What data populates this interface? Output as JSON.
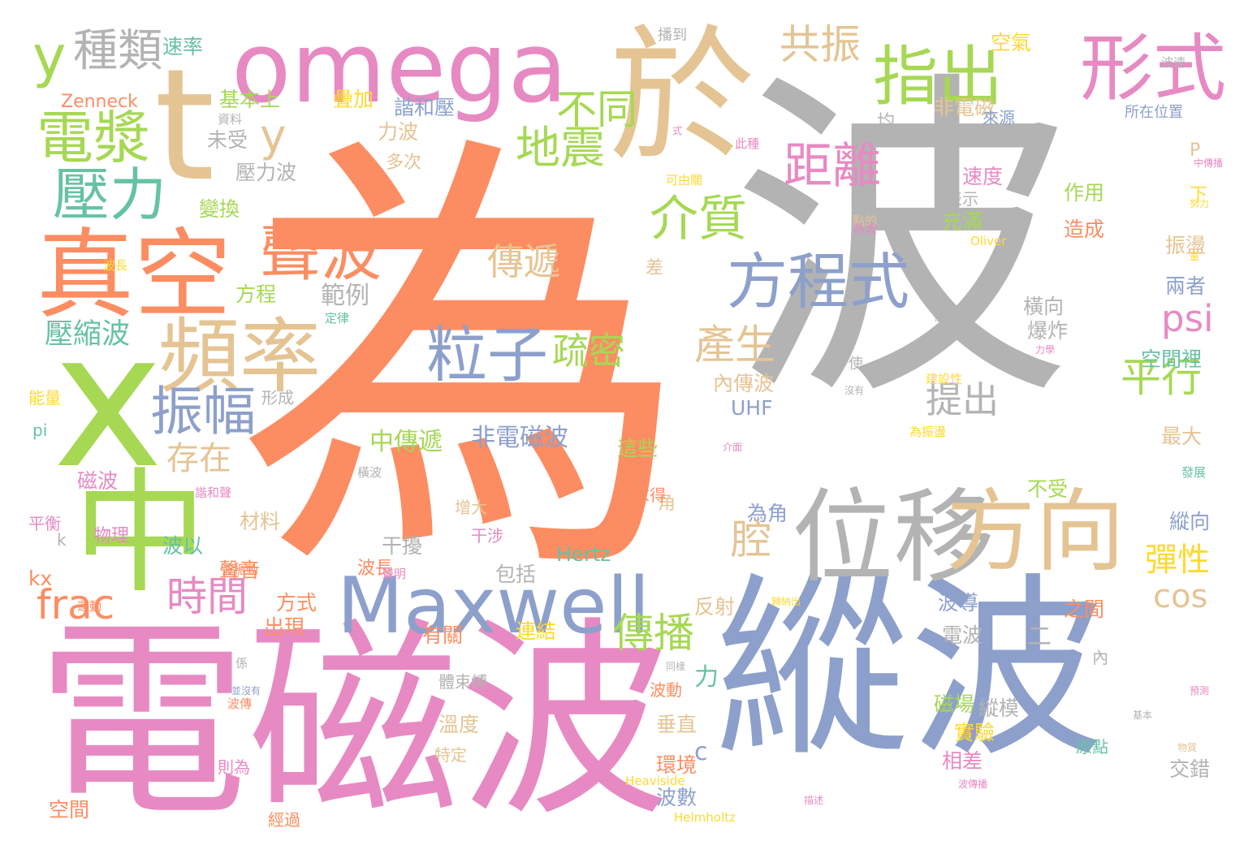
{
  "colors": {
    "orange": "#fc8d62",
    "gray": "#b3b3b3",
    "blue": "#8da0cb",
    "pink": "#e78ac3",
    "green": "#a6d854",
    "tan": "#e5c494",
    "teal": "#66c2a5",
    "yellow": "#ffd92f"
  },
  "words": [
    {
      "text": "為",
      "color": "orange"
    },
    {
      "text": "波",
      "color": "gray"
    },
    {
      "text": "電磁波",
      "color": "pink"
    },
    {
      "text": "縱波",
      "color": "blue"
    },
    {
      "text": "於",
      "color": "tan"
    },
    {
      "text": "omega",
      "color": "pink"
    },
    {
      "text": "t",
      "color": "tan"
    },
    {
      "text": "x",
      "color": "green"
    },
    {
      "text": "中",
      "color": "green"
    },
    {
      "text": "真空",
      "color": "orange"
    },
    {
      "text": "頻率",
      "color": "tan"
    },
    {
      "text": "位移",
      "color": "gray"
    },
    {
      "text": "方向",
      "color": "tan"
    },
    {
      "text": "Maxwell",
      "color": "blue"
    },
    {
      "text": "形式",
      "color": "pink"
    },
    {
      "text": "指出",
      "color": "green"
    },
    {
      "text": "方程式",
      "color": "blue"
    },
    {
      "text": "聲波",
      "color": "orange"
    },
    {
      "text": "粒子",
      "color": "blue"
    },
    {
      "text": "電漿",
      "color": "green"
    },
    {
      "text": "壓力",
      "color": "teal"
    },
    {
      "text": "振幅",
      "color": "blue"
    },
    {
      "text": "距離",
      "color": "pink"
    },
    {
      "text": "介質",
      "color": "green"
    },
    {
      "text": "地震",
      "color": "green"
    },
    {
      "text": "y",
      "color": "green"
    },
    {
      "text": "種類",
      "color": "gray"
    },
    {
      "text": "共振",
      "color": "tan"
    },
    {
      "text": "不同",
      "color": "green"
    },
    {
      "text": "y",
      "color": "tan"
    },
    {
      "text": "傳遞",
      "color": "tan"
    },
    {
      "text": "疏密",
      "color": "green"
    },
    {
      "text": "產生",
      "color": "tan"
    },
    {
      "text": "時間",
      "color": "pink"
    },
    {
      "text": "frac",
      "color": "orange"
    },
    {
      "text": "psi",
      "color": "pink"
    },
    {
      "text": "平行",
      "color": "green"
    },
    {
      "text": "提出",
      "color": "gray"
    },
    {
      "text": "傳播",
      "color": "green"
    },
    {
      "text": "腔",
      "color": "tan"
    },
    {
      "text": "彈性",
      "color": "yellow"
    },
    {
      "text": "cos",
      "color": "tan"
    },
    {
      "text": "存在",
      "color": "tan"
    },
    {
      "text": "壓縮波",
      "color": "teal"
    },
    {
      "text": "非電磁波",
      "color": "blue"
    },
    {
      "text": "中傳遞",
      "color": "green"
    },
    {
      "text": "範例",
      "color": "gray"
    },
    {
      "text": "這些",
      "color": "green"
    },
    {
      "text": "速率",
      "color": "teal"
    },
    {
      "text": "Zenneck",
      "color": "orange"
    },
    {
      "text": "基本上",
      "color": "green"
    },
    {
      "text": "疊加",
      "color": "yellow"
    },
    {
      "text": "諧和壓",
      "color": "blue"
    },
    {
      "text": "力波",
      "color": "tan"
    },
    {
      "text": "未受",
      "color": "gray"
    },
    {
      "text": "多次",
      "color": "tan"
    },
    {
      "text": "壓力波",
      "color": "gray"
    },
    {
      "text": "變換",
      "color": "green"
    },
    {
      "text": "方程",
      "color": "green"
    },
    {
      "text": "內傳波",
      "color": "tan"
    },
    {
      "text": "UHF",
      "color": "blue"
    },
    {
      "text": "最大",
      "color": "tan"
    },
    {
      "text": "非電磁",
      "color": "tan"
    },
    {
      "text": "均",
      "color": "gray"
    },
    {
      "text": "速度",
      "color": "pink"
    },
    {
      "text": "表示",
      "color": "gray"
    },
    {
      "text": "作用",
      "color": "green"
    },
    {
      "text": "充滿",
      "color": "green"
    },
    {
      "text": "造成",
      "color": "orange"
    },
    {
      "text": "振盪",
      "color": "tan"
    },
    {
      "text": "兩者",
      "color": "blue"
    },
    {
      "text": "橫向",
      "color": "gray"
    },
    {
      "text": "爆炸",
      "color": "gray"
    },
    {
      "text": "空間裡",
      "color": "teal"
    },
    {
      "text": "空氣",
      "color": "yellow"
    },
    {
      "text": "來源",
      "color": "blue"
    },
    {
      "text": "磁波",
      "color": "pink"
    },
    {
      "text": "材料",
      "color": "tan"
    },
    {
      "text": "聲音",
      "color": "orange"
    },
    {
      "text": "干擾",
      "color": "gray"
    },
    {
      "text": "包括",
      "color": "gray"
    },
    {
      "text": "Hertz",
      "color": "teal"
    },
    {
      "text": "方式",
      "color": "orange"
    },
    {
      "text": "出現",
      "color": "orange"
    },
    {
      "text": "有關",
      "color": "orange"
    },
    {
      "text": "連結",
      "color": "yellow"
    },
    {
      "text": "反射",
      "color": "tan"
    },
    {
      "text": "溫度",
      "color": "tan"
    },
    {
      "text": "垂直",
      "color": "tan"
    },
    {
      "text": "環境",
      "color": "orange"
    },
    {
      "text": "波數",
      "color": "blue"
    },
    {
      "text": "磁場",
      "color": "green"
    },
    {
      "text": "實驗",
      "color": "yellow"
    },
    {
      "text": "相差",
      "color": "pink"
    },
    {
      "text": "縱模",
      "color": "gray"
    },
    {
      "text": "交錯",
      "color": "gray"
    },
    {
      "text": "空間",
      "color": "orange"
    },
    {
      "text": "電波",
      "color": "gray"
    },
    {
      "text": "波導",
      "color": "blue"
    },
    {
      "text": "之間",
      "color": "orange"
    },
    {
      "text": "不受",
      "color": "green"
    },
    {
      "text": "縱向",
      "color": "blue"
    },
    {
      "text": "為角",
      "color": "blue"
    },
    {
      "text": "增大",
      "color": "tan"
    },
    {
      "text": "波長",
      "color": "orange"
    },
    {
      "text": "波以",
      "color": "teal"
    },
    {
      "text": "物理",
      "color": "pink"
    },
    {
      "text": "平衡",
      "color": "pink"
    },
    {
      "text": "kx",
      "color": "orange"
    },
    {
      "text": "pi",
      "color": "teal"
    },
    {
      "text": "能量",
      "color": "yellow"
    },
    {
      "text": "形成",
      "color": "gray"
    },
    {
      "text": "k",
      "color": "gray"
    },
    {
      "text": "c",
      "color": "blue"
    },
    {
      "text": "力",
      "color": "teal"
    },
    {
      "text": "二",
      "color": "gray"
    },
    {
      "text": "差",
      "color": "tan"
    },
    {
      "text": "P",
      "color": "tan"
    },
    {
      "text": "下",
      "color": "yellow"
    },
    {
      "text": "波速",
      "color": "gray"
    },
    {
      "text": "播到",
      "color": "gray"
    },
    {
      "text": "所在位置",
      "color": "blue"
    },
    {
      "text": "可由關",
      "color": "yellow"
    },
    {
      "text": "點的",
      "color": "tan"
    },
    {
      "text": "為波",
      "color": "pink"
    },
    {
      "text": "Oliver",
      "color": "yellow"
    },
    {
      "text": "使",
      "color": "gray"
    },
    {
      "text": "建設性",
      "color": "yellow"
    },
    {
      "text": "為振盪",
      "color": "yellow"
    },
    {
      "text": "角",
      "color": "tan"
    },
    {
      "text": "干涉",
      "color": "pink"
    },
    {
      "text": "求得",
      "color": "orange"
    },
    {
      "text": "波動",
      "color": "orange"
    },
    {
      "text": "經過",
      "color": "orange"
    },
    {
      "text": "則為",
      "color": "pink"
    },
    {
      "text": "Heaviside",
      "color": "yellow"
    },
    {
      "text": "Helmholtz",
      "color": "yellow"
    },
    {
      "text": "體束縛",
      "color": "gray"
    },
    {
      "text": "特定",
      "color": "tan"
    },
    {
      "text": "內",
      "color": "gray"
    },
    {
      "text": "原點",
      "color": "teal"
    },
    {
      "text": "係",
      "color": "gray"
    },
    {
      "text": "運動",
      "color": "orange"
    },
    {
      "text": "波振動",
      "color": "orange"
    },
    {
      "text": "諧和聲",
      "color": "pink"
    },
    {
      "text": "資料",
      "color": "gray"
    },
    {
      "text": "此種",
      "color": "pink"
    },
    {
      "text": "式",
      "color": "pink"
    },
    {
      "text": "中傳播",
      "color": "pink"
    },
    {
      "text": "努力",
      "color": "yellow"
    },
    {
      "text": "量",
      "color": "yellow"
    },
    {
      "text": "後",
      "color": "gray"
    },
    {
      "text": "力學",
      "color": "pink"
    },
    {
      "text": "沒有",
      "color": "gray"
    },
    {
      "text": "介面",
      "color": "pink"
    },
    {
      "text": "發展",
      "color": "teal"
    },
    {
      "text": "物質",
      "color": "tan"
    },
    {
      "text": "基本",
      "color": "gray"
    },
    {
      "text": "預測",
      "color": "pink"
    },
    {
      "text": "同樣",
      "color": "gray"
    },
    {
      "text": "歸納出",
      "color": "yellow"
    },
    {
      "text": "並沒有",
      "color": "blue"
    },
    {
      "text": "描述",
      "color": "pink"
    },
    {
      "text": "波傳播",
      "color": "pink"
    },
    {
      "text": "橫波",
      "color": "gray"
    },
    {
      "text": "定律",
      "color": "teal"
    },
    {
      "text": "波傳",
      "color": "orange"
    },
    {
      "text": "聲明",
      "color": "pink"
    },
    {
      "text": "波長",
      "color": "yellow"
    },
    {
      "text": "f",
      "color": "gray"
    }
  ]
}
